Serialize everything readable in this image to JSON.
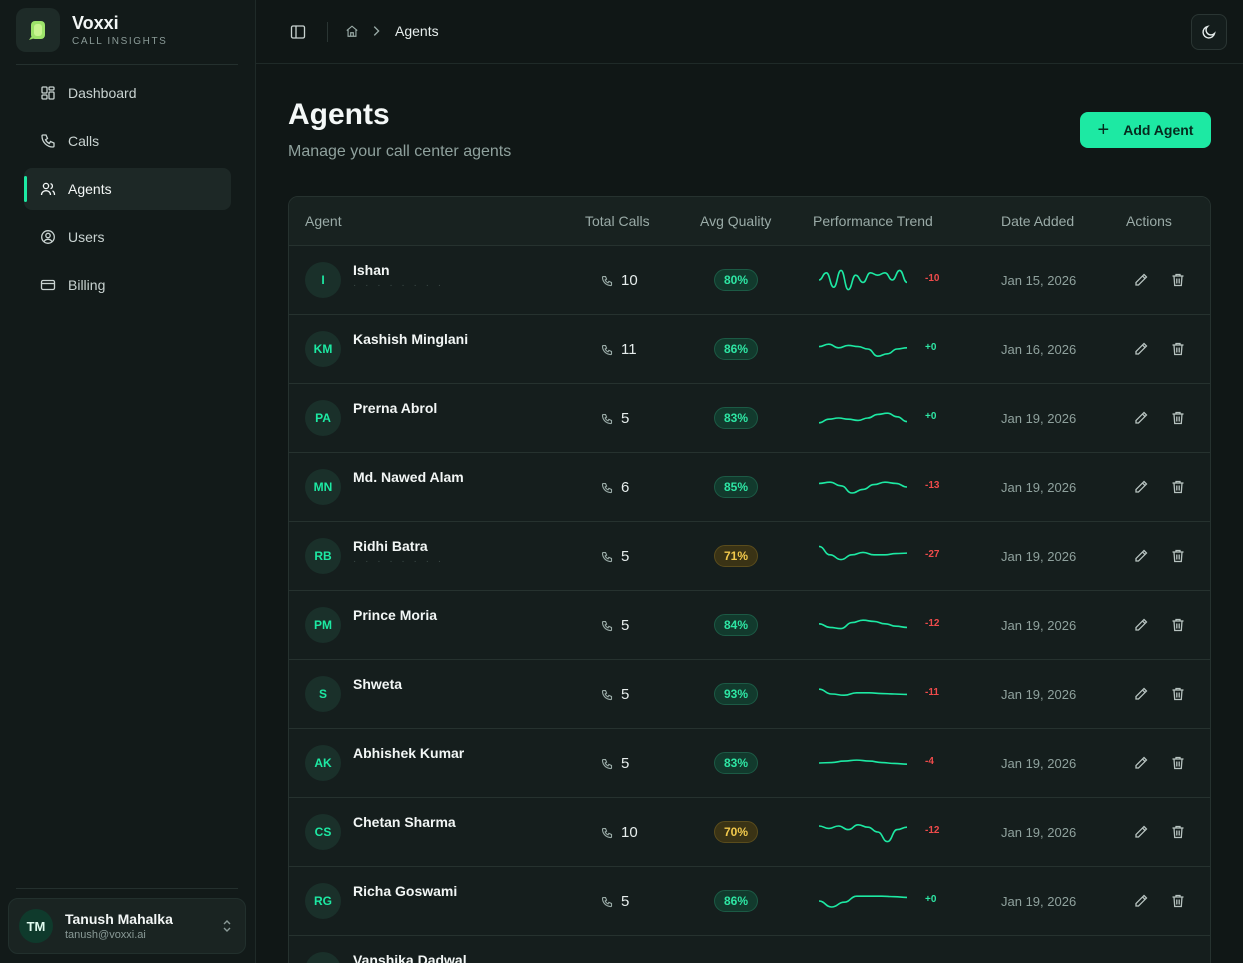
{
  "brand": {
    "name": "Voxxi",
    "subtitle": "CALL INSIGHTS"
  },
  "nav": [
    {
      "label": "Dashboard",
      "icon": "dashboard-icon",
      "active": false
    },
    {
      "label": "Calls",
      "icon": "phone-icon",
      "active": false
    },
    {
      "label": "Agents",
      "icon": "users-icon",
      "active": true
    },
    {
      "label": "Users",
      "icon": "user-circle-icon",
      "active": false
    },
    {
      "label": "Billing",
      "icon": "credit-card-icon",
      "active": false
    }
  ],
  "user": {
    "initials": "TM",
    "name": "Tanush Mahalka",
    "email": "tanush@voxxi.ai"
  },
  "breadcrumb": {
    "current": "Agents"
  },
  "page": {
    "title": "Agents",
    "subtitle": "Manage your call center agents",
    "add_button": "Add Agent"
  },
  "table": {
    "headers": [
      "Agent",
      "Total Calls",
      "Avg Quality",
      "Performance Trend",
      "Date Added",
      "Actions"
    ],
    "rows": [
      {
        "initials": "I",
        "name": "Ishan",
        "sub": "· · · · · · · ·",
        "calls": "10",
        "quality": "80%",
        "tone": "good",
        "delta": "-10",
        "date": "Jan 15, 2026",
        "trend": [
          0.5,
          0.2,
          0.8,
          0.1,
          0.9,
          0.3,
          0.6,
          0.2,
          0.3,
          0.2,
          0.5,
          0.1,
          0.6
        ]
      },
      {
        "initials": "KM",
        "name": "Kashish Minglani",
        "sub": "",
        "calls": "11",
        "quality": "86%",
        "tone": "good",
        "delta": "+0",
        "date": "Jan 16, 2026",
        "trend": [
          0.4,
          0.3,
          0.45,
          0.35,
          0.4,
          0.5,
          0.8,
          0.7,
          0.5,
          0.45
        ]
      },
      {
        "initials": "PA",
        "name": "Prerna Abrol",
        "sub": "",
        "calls": "5",
        "quality": "83%",
        "tone": "good",
        "delta": "+0",
        "date": "Jan 19, 2026",
        "trend": [
          0.7,
          0.55,
          0.5,
          0.55,
          0.6,
          0.5,
          0.35,
          0.3,
          0.45,
          0.65
        ]
      },
      {
        "initials": "MN",
        "name": "Md. Nawed Alam",
        "sub": "",
        "calls": "6",
        "quality": "85%",
        "tone": "good",
        "delta": "-13",
        "date": "Jan 19, 2026",
        "trend": [
          0.35,
          0.3,
          0.45,
          0.75,
          0.6,
          0.4,
          0.3,
          0.35,
          0.5
        ]
      },
      {
        "initials": "RB",
        "name": "Ridhi Batra",
        "sub": "· · · · · · · ·",
        "calls": "5",
        "quality": "71%",
        "tone": "warn",
        "delta": "-27",
        "date": "Jan 19, 2026",
        "trend": [
          0.1,
          0.45,
          0.65,
          0.45,
          0.35,
          0.45,
          0.45,
          0.4,
          0.38
        ]
      },
      {
        "initials": "PM",
        "name": "Prince Moria",
        "sub": "",
        "calls": "5",
        "quality": "84%",
        "tone": "good",
        "delta": "-12",
        "date": "Jan 19, 2026",
        "trend": [
          0.45,
          0.6,
          0.65,
          0.4,
          0.3,
          0.35,
          0.45,
          0.55,
          0.6
        ]
      },
      {
        "initials": "S",
        "name": "Shweta",
        "sub": "",
        "calls": "5",
        "quality": "93%",
        "tone": "good",
        "delta": "-11",
        "date": "Jan 19, 2026",
        "trend": [
          0.3,
          0.5,
          0.55,
          0.45,
          0.45,
          0.48,
          0.5,
          0.52
        ]
      },
      {
        "initials": "AK",
        "name": "Abhishek Kumar",
        "sub": "",
        "calls": "5",
        "quality": "83%",
        "tone": "good",
        "delta": "-4",
        "date": "Jan 19, 2026",
        "trend": [
          0.5,
          0.48,
          0.42,
          0.38,
          0.42,
          0.48,
          0.52,
          0.55
        ]
      },
      {
        "initials": "CS",
        "name": "Chetan Sharma",
        "sub": "",
        "calls": "10",
        "quality": "70%",
        "tone": "warn",
        "delta": "-12",
        "date": "Jan 19, 2026",
        "trend": [
          0.25,
          0.35,
          0.25,
          0.4,
          0.2,
          0.3,
          0.5,
          0.9,
          0.4,
          0.3
        ]
      },
      {
        "initials": "RG",
        "name": "Richa Goswami",
        "sub": "",
        "calls": "5",
        "quality": "86%",
        "tone": "good",
        "delta": "+0",
        "date": "Jan 19, 2026",
        "trend": [
          0.5,
          0.75,
          0.55,
          0.3,
          0.3,
          0.3,
          0.32,
          0.35
        ]
      },
      {
        "initials": "VD",
        "name": "Vanshika Dadwal",
        "sub": "",
        "calls": "",
        "quality": "",
        "tone": "warn",
        "delta": "",
        "date": "",
        "trend": []
      }
    ]
  },
  "colors": {
    "accent": "#1de9a3",
    "negative": "#ef4b4b",
    "warning": "#f2c94c",
    "background": "#101716"
  }
}
